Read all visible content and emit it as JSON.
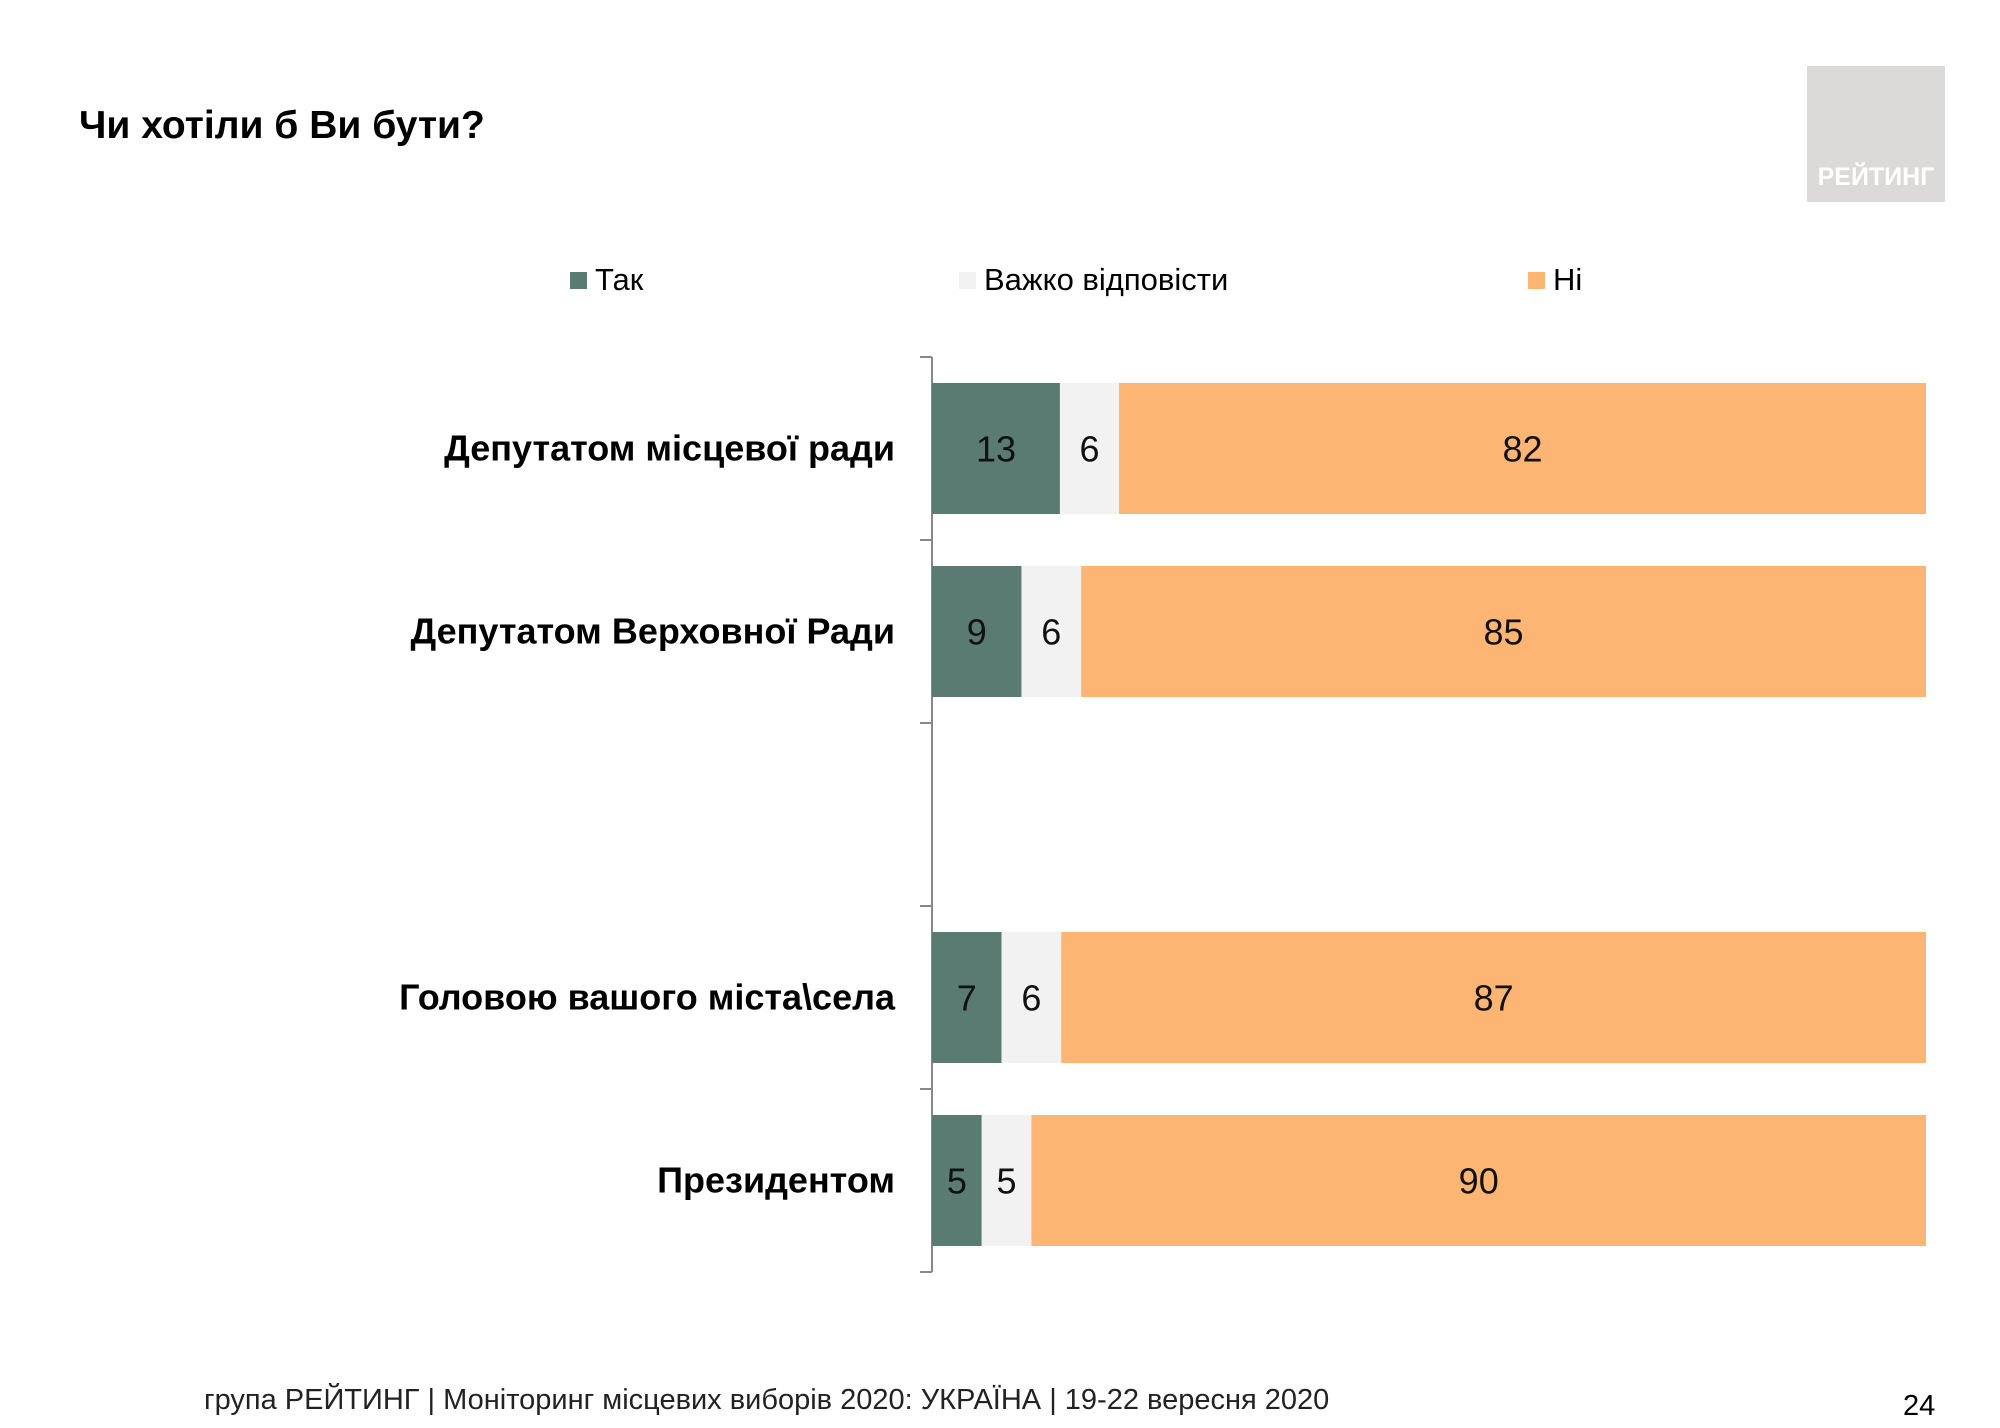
{
  "title": "Чи хотіли б Ви бути?",
  "logo_text": "РЕЙТИНГ",
  "footer": "група РЕЙТИНГ | Моніторинг місцевих виборів 2020: УКРАЇНА | 19-22 вересня 2020",
  "page_number": "24",
  "chart_data": {
    "type": "bar",
    "orientation": "horizontal",
    "stacked": true,
    "title": "Чи хотіли б Ви бути?",
    "legend_position": "top",
    "categories": [
      "Депутатом місцевої ради",
      "Депутатом Верховної Ради",
      "",
      "Головою вашого міста\\села",
      "Президентом"
    ],
    "series": [
      {
        "name": "Так",
        "color": "#5a7b72",
        "values": [
          13,
          9,
          null,
          7,
          5
        ]
      },
      {
        "name": "Важко відповісти",
        "color": "#f2f2f2",
        "values": [
          6,
          6,
          null,
          6,
          5
        ]
      },
      {
        "name": "Ні",
        "color": "#fdb574",
        "values": [
          82,
          85,
          null,
          87,
          90
        ]
      }
    ],
    "grid": false
  }
}
